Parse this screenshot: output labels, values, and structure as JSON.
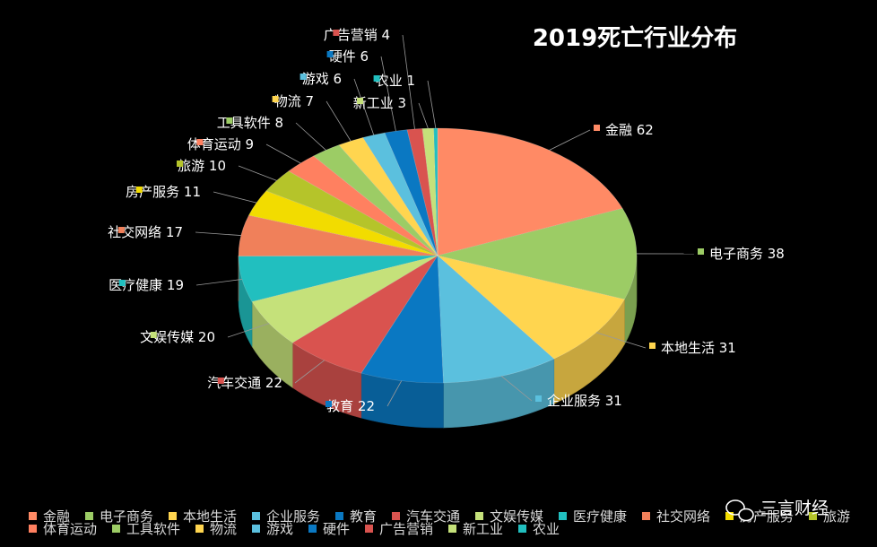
{
  "chart_data": {
    "type": "pie",
    "title": "2019死亡行业分布",
    "categories": [
      "金融",
      "电子商务",
      "本地生活",
      "企业服务",
      "教育",
      "汽车交通",
      "文娱传媒",
      "医疗健康",
      "社交网络",
      "房产服务",
      "旅游",
      "体育运动",
      "工具软件",
      "物流",
      "游戏",
      "硬件",
      "广告营销",
      "新工业",
      "农业"
    ],
    "values": [
      62,
      38,
      31,
      31,
      22,
      22,
      20,
      19,
      17,
      11,
      10,
      9,
      8,
      7,
      6,
      6,
      4,
      3,
      1
    ],
    "colors": [
      "#ff8a65",
      "#9ccc65",
      "#ffd54f",
      "#5bc0de",
      "#0a78c2",
      "#d9534f",
      "#c5e17a",
      "#21bfbf",
      "#f0805a",
      "#f2dc00",
      "#b5c42a",
      "#ff8060",
      "#9ccc65",
      "#ffd54f",
      "#5bc0de",
      "#0a78c2",
      "#d9534f",
      "#c5e17a",
      "#21bfbf"
    ],
    "legend_position": "bottom",
    "legend_row1": [
      "金融",
      "电子商务",
      "本地生活",
      "企业服务",
      "教育",
      "汽车交通",
      "文娱传媒",
      "医疗健康",
      "社交网络",
      "房产服务",
      "旅游"
    ],
    "legend_row2": [
      "体育运动",
      "工具软件",
      "物流",
      "游戏",
      "硬件",
      "广告营销",
      "新工业",
      "农业"
    ]
  },
  "watermark": "三言财经"
}
